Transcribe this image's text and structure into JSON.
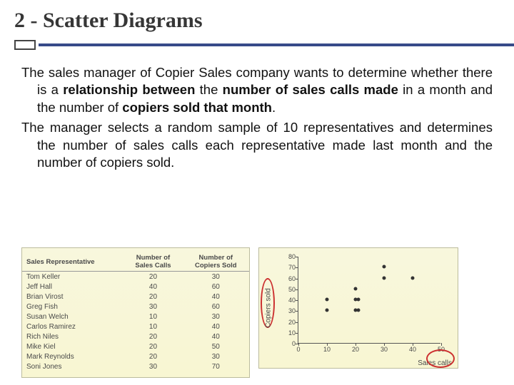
{
  "title": "2 - Scatter Diagrams",
  "para1": {
    "t1": "The sales manager of Copier Sales company wants to determine whether there is a ",
    "b1": "relationship between",
    "t2": " the ",
    "b2": "number of sales calls made",
    "t3": " in a month and the number of ",
    "b3": "copiers sold that month",
    "t4": "."
  },
  "para2": "The manager selects a random sample of 10 representatives and determines the number of sales calls each representative made last month and the number of copiers sold.",
  "table": {
    "headers": [
      "Sales Representative",
      "Number of\nSales Calls",
      "Number of\nCopiers Sold"
    ],
    "rows": [
      [
        "Tom Keller",
        "20",
        "30"
      ],
      [
        "Jeff Hall",
        "40",
        "60"
      ],
      [
        "Brian Virost",
        "20",
        "40"
      ],
      [
        "Greg Fish",
        "30",
        "60"
      ],
      [
        "Susan Welch",
        "10",
        "30"
      ],
      [
        "Carlos Ramirez",
        "10",
        "40"
      ],
      [
        "Rich Niles",
        "20",
        "40"
      ],
      [
        "Mike Kiel",
        "20",
        "50"
      ],
      [
        "Mark Reynolds",
        "20",
        "30"
      ],
      [
        "Soni Jones",
        "30",
        "70"
      ]
    ]
  },
  "scatter": {
    "type": "scatter",
    "xlim": [
      0,
      50
    ],
    "ylim": [
      0,
      80
    ],
    "xticks": [
      0,
      10,
      20,
      30,
      40,
      50
    ],
    "yticks": [
      0,
      10,
      20,
      30,
      40,
      50,
      60,
      70,
      80
    ],
    "xlabel": "Sales calls",
    "ylabel": "Copiers sold",
    "point_color": "#333333",
    "background_color": "#f8f6d2",
    "points": [
      {
        "x": 20,
        "y": 30
      },
      {
        "x": 40,
        "y": 60
      },
      {
        "x": 20,
        "y": 40
      },
      {
        "x": 30,
        "y": 60
      },
      {
        "x": 10,
        "y": 30
      },
      {
        "x": 10,
        "y": 40
      },
      {
        "x": 20,
        "y": 40
      },
      {
        "x": 20,
        "y": 50
      },
      {
        "x": 20,
        "y": 30
      },
      {
        "x": 30,
        "y": 70
      }
    ]
  },
  "style": {
    "title_font": "Georgia serif",
    "title_size_pt": 30,
    "title_color": "#363636",
    "body_size_pt": 18.5,
    "body_color": "#111111",
    "accent_line_color": "#374a89",
    "table_bg": "#f8f6d2",
    "table_border": "#bcbc9d",
    "table_text": "#4a4a4a",
    "annotation_ellipse_color": "#cc3030"
  }
}
